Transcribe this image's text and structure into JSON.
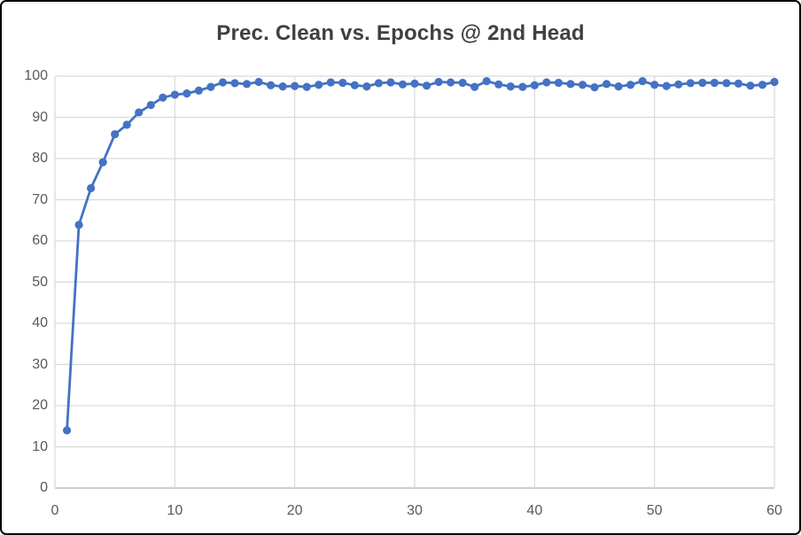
{
  "chart_data": {
    "type": "line",
    "title": "Prec. Clean vs. Epochs @ 2nd Head",
    "xlabel": "",
    "ylabel": "",
    "xlim": [
      0,
      60
    ],
    "ylim": [
      0,
      100
    ],
    "x_ticks": [
      0,
      10,
      20,
      30,
      40,
      50,
      60
    ],
    "y_ticks": [
      0,
      10,
      20,
      30,
      40,
      50,
      60,
      70,
      80,
      90,
      100
    ],
    "grid": true,
    "legend": false,
    "marker": "circle",
    "x": [
      1,
      2,
      3,
      4,
      5,
      6,
      7,
      8,
      9,
      10,
      11,
      12,
      13,
      14,
      15,
      16,
      17,
      18,
      19,
      20,
      21,
      22,
      23,
      24,
      25,
      26,
      27,
      28,
      29,
      30,
      31,
      32,
      33,
      34,
      35,
      36,
      37,
      38,
      39,
      40,
      41,
      42,
      43,
      44,
      45,
      46,
      47,
      48,
      49,
      50,
      51,
      52,
      53,
      54,
      55,
      56,
      57,
      58,
      59,
      60
    ],
    "values": [
      14.0,
      63.9,
      72.8,
      79.1,
      85.9,
      88.2,
      91.2,
      93.0,
      94.8,
      95.5,
      95.8,
      96.5,
      97.4,
      98.5,
      98.3,
      98.1,
      98.6,
      97.8,
      97.5,
      97.6,
      97.4,
      97.9,
      98.5,
      98.4,
      97.8,
      97.5,
      98.3,
      98.5,
      98.0,
      98.2,
      97.7,
      98.6,
      98.5,
      98.4,
      97.4,
      98.8,
      98.0,
      97.5,
      97.4,
      97.8,
      98.5,
      98.4,
      98.1,
      97.9,
      97.3,
      98.1,
      97.5,
      97.9,
      98.8,
      97.9,
      97.6,
      98.0,
      98.3,
      98.4,
      98.4,
      98.3,
      98.2,
      97.7,
      97.9,
      98.6
    ],
    "colors": {
      "series": "#4472C4",
      "gridline": "#D9D9D9",
      "axis_line": "#BFBFBF",
      "tick_label": "#595959",
      "title": "#404040",
      "background": "#FFFFFF",
      "border": "#000000"
    }
  }
}
